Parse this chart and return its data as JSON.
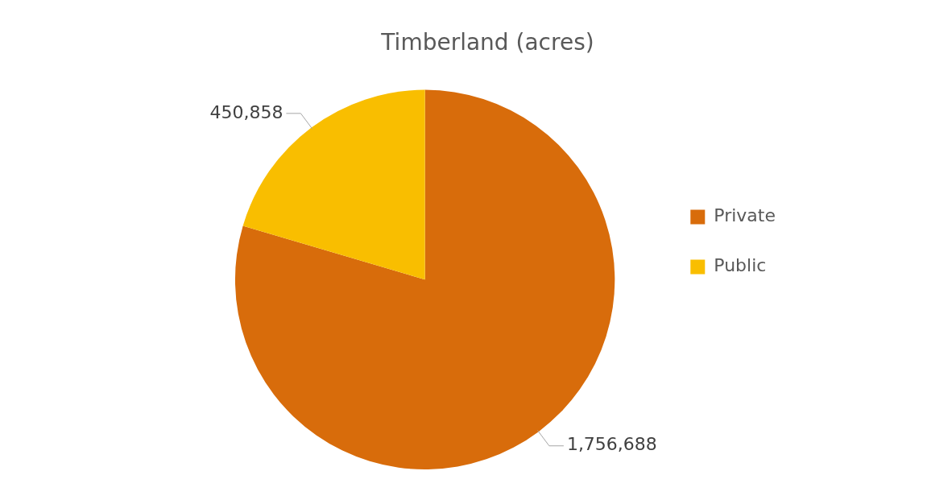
{
  "chart_data": {
    "type": "pie",
    "title": "Timberland (acres)",
    "categories": [
      "Private",
      "Public"
    ],
    "values": [
      1756688,
      450858
    ],
    "value_labels": [
      "1,756,688",
      "450,858"
    ],
    "colors": [
      "#d86c0b",
      "#f9be00"
    ],
    "legend": "right"
  }
}
